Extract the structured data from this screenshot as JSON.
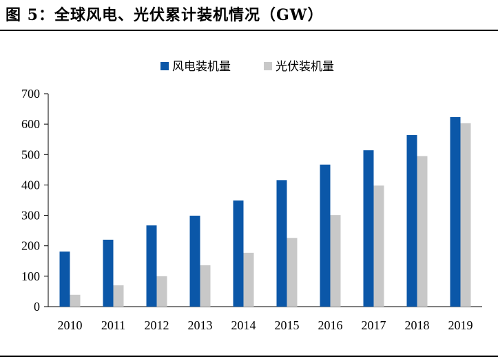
{
  "figure": {
    "title": "图 5：全球风电、光伏累计装机情况（GW）"
  },
  "chart_data": {
    "type": "bar",
    "title": "",
    "xlabel": "",
    "ylabel": "",
    "categories": [
      "2010",
      "2011",
      "2012",
      "2013",
      "2014",
      "2015",
      "2016",
      "2017",
      "2018",
      "2019"
    ],
    "series": [
      {
        "name": "风电装机量",
        "color": "#0b57a8",
        "values": [
          181,
          220,
          267,
          299,
          349,
          416,
          467,
          514,
          564,
          623
        ]
      },
      {
        "name": "光伏装机量",
        "color": "#c8c8c8",
        "values": [
          39,
          70,
          100,
          136,
          177,
          226,
          301,
          398,
          495,
          603
        ]
      }
    ],
    "ylim": [
      0,
      700
    ],
    "yticks": [
      0,
      100,
      200,
      300,
      400,
      500,
      600,
      700
    ],
    "grid": false,
    "legend": "top-center"
  }
}
